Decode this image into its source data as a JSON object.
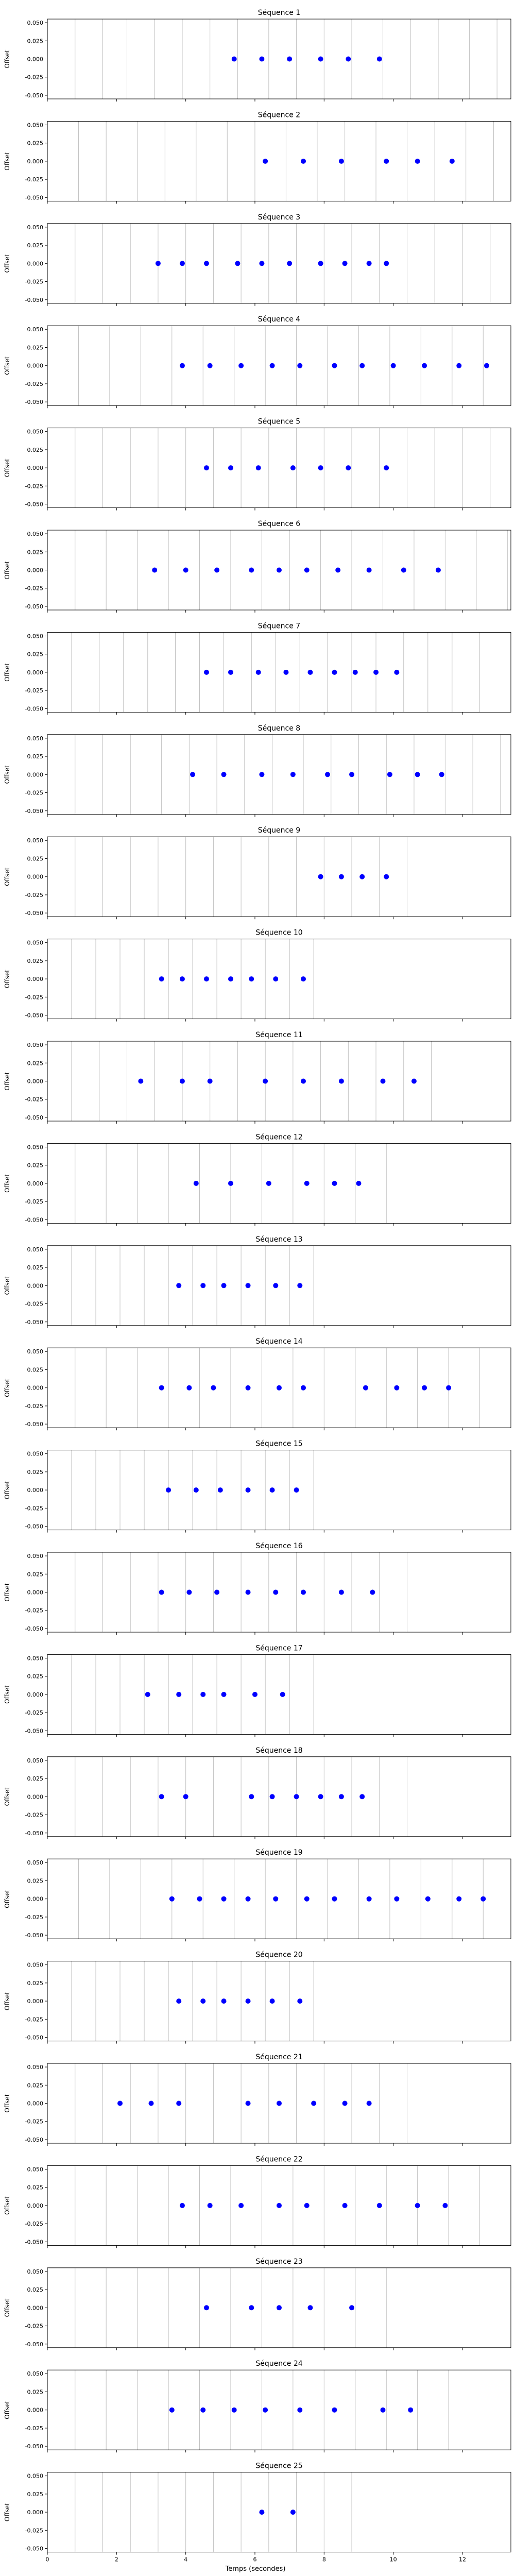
{
  "figure": {
    "xlabel": "Temps (secondes)",
    "ylabel": "Offset",
    "x_ticks": [
      "0",
      "2",
      "4",
      "6",
      "8",
      "10",
      "12"
    ],
    "y_ticks": [
      "0.050",
      "0.025",
      "0.000",
      "-0.025",
      "-0.050"
    ]
  },
  "chart_data": {
    "type": "scatter",
    "shared_x_axis": true,
    "xlim": [
      0,
      13.4
    ],
    "ylim": [
      -0.055,
      0.055
    ],
    "x_ticks": [
      0,
      2,
      4,
      6,
      8,
      10,
      12
    ],
    "y_ticks": [
      0.05,
      0.025,
      0.0,
      -0.025,
      -0.05
    ],
    "grid": "vertical lines only",
    "point_color": "#0000ff",
    "line_color": "#c0c0c0",
    "xlabel": "Temps (secondes)",
    "ylabel": "Offset",
    "panels": [
      {
        "title": "Séquence 1",
        "points": [
          5.4,
          6.2,
          7.0,
          7.9,
          8.7,
          9.6
        ],
        "lines": [
          0.8,
          1.6,
          2.3,
          3.1,
          3.9,
          4.7,
          5.5,
          6.4,
          7.2,
          8.0,
          8.8,
          9.7,
          10.5,
          11.3,
          12.2,
          13.0
        ]
      },
      {
        "title": "Séquence 2",
        "points": [
          6.3,
          7.4,
          8.5,
          9.8,
          10.7,
          11.7
        ],
        "lines": [
          0.9,
          1.7,
          2.6,
          3.4,
          4.3,
          5.2,
          6.0,
          6.9,
          7.8,
          8.6,
          9.5,
          10.4,
          11.2,
          12.1,
          12.9
        ]
      },
      {
        "title": "Séquence 3",
        "points": [
          3.2,
          3.9,
          4.6,
          5.5,
          6.2,
          7.0,
          7.9,
          8.6,
          9.3,
          9.8
        ],
        "lines": [
          0.8,
          1.6,
          2.4,
          3.2,
          4.0,
          4.8,
          5.6,
          6.4,
          7.2,
          8.0,
          8.8,
          9.6,
          10.4,
          11.2,
          12.0,
          12.8
        ]
      },
      {
        "title": "Séquence 4",
        "points": [
          3.9,
          4.7,
          5.6,
          6.5,
          7.3,
          8.3,
          9.1,
          10.0,
          10.9,
          11.9,
          12.7
        ],
        "lines": [
          0.9,
          1.8,
          2.7,
          3.6,
          4.5,
          5.4,
          6.3,
          7.2,
          8.1,
          9.0,
          9.9,
          10.8,
          11.7,
          12.6
        ]
      },
      {
        "title": "Séquence 5",
        "points": [
          4.6,
          5.3,
          6.1,
          7.1,
          7.9,
          8.7,
          9.8
        ],
        "lines": [
          0.8,
          1.6,
          2.4,
          3.2,
          4.0,
          4.8,
          5.6,
          6.4,
          7.2,
          8.0,
          8.8,
          9.6,
          10.4,
          11.2,
          12.0,
          12.8
        ]
      },
      {
        "title": "Séquence 6",
        "points": [
          3.1,
          4.0,
          4.9,
          5.9,
          6.7,
          7.5,
          8.4,
          9.3,
          10.3,
          11.3
        ],
        "lines": [
          0.8,
          1.7,
          2.6,
          3.5,
          4.4,
          5.3,
          6.2,
          7.0,
          7.9,
          8.8,
          9.7,
          10.6,
          11.5,
          12.4,
          13.3
        ]
      },
      {
        "title": "Séquence 7",
        "points": [
          4.6,
          5.3,
          6.1,
          6.9,
          7.6,
          8.3,
          8.9,
          9.5,
          10.1
        ],
        "lines": [
          0.7,
          1.5,
          2.2,
          2.9,
          3.7,
          4.4,
          5.1,
          5.9,
          6.6,
          7.3,
          8.1,
          8.8,
          9.5,
          10.3,
          11.0,
          11.7,
          12.5
        ]
      },
      {
        "title": "Séquence 8",
        "points": [
          4.2,
          5.1,
          6.2,
          7.1,
          8.1,
          8.8,
          9.9,
          10.7,
          11.4
        ],
        "lines": [
          0.8,
          1.6,
          2.4,
          3.3,
          4.1,
          4.9,
          5.7,
          6.5,
          7.4,
          8.2,
          9.0,
          9.8,
          10.6,
          11.5,
          12.3,
          13.1
        ]
      },
      {
        "title": "Séquence 9",
        "points": [
          7.9,
          8.5,
          9.1,
          9.8
        ],
        "lines": [
          0.8,
          1.6,
          2.4,
          3.2,
          4.0,
          4.8,
          5.6,
          6.4,
          7.2,
          8.0,
          8.8,
          9.6,
          10.4
        ]
      },
      {
        "title": "Séquence 10",
        "points": [
          3.3,
          3.9,
          4.6,
          5.3,
          5.9,
          6.6,
          7.4
        ],
        "lines": [
          0.7,
          1.4,
          2.1,
          2.8,
          3.5,
          4.2,
          4.9,
          5.6,
          6.3,
          7.0,
          7.7
        ]
      },
      {
        "title": "Séquence 11",
        "points": [
          2.7,
          3.9,
          4.7,
          6.3,
          7.4,
          8.5,
          9.7,
          10.6
        ],
        "lines": [
          0.7,
          1.5,
          2.3,
          3.1,
          3.9,
          4.7,
          5.5,
          6.3,
          7.1,
          7.9,
          8.7,
          9.5,
          10.3,
          11.1
        ]
      },
      {
        "title": "Séquence 12",
        "points": [
          4.3,
          5.3,
          6.4,
          7.5,
          8.3,
          9.0
        ],
        "lines": [
          0.8,
          1.7,
          2.6,
          3.5,
          4.4,
          5.3,
          6.2,
          7.1,
          8.0,
          8.9,
          9.8
        ]
      },
      {
        "title": "Séquence 13",
        "points": [
          3.8,
          4.5,
          5.1,
          5.8,
          6.6,
          7.3
        ],
        "lines": [
          0.7,
          1.4,
          2.1,
          2.8,
          3.5,
          4.2,
          4.9,
          5.6,
          6.3,
          7.0,
          7.7
        ]
      },
      {
        "title": "Séquence 14",
        "points": [
          3.3,
          4.1,
          4.8,
          5.8,
          6.7,
          7.4,
          9.2,
          10.1,
          10.9,
          11.6
        ],
        "lines": [
          0.8,
          1.7,
          2.6,
          3.5,
          4.4,
          5.3,
          6.2,
          7.1,
          8.0,
          8.9,
          9.8,
          10.7,
          11.6,
          12.5
        ]
      },
      {
        "title": "Séquence 15",
        "points": [
          3.5,
          4.3,
          5.0,
          5.8,
          6.5,
          7.2
        ],
        "lines": [
          0.7,
          1.4,
          2.1,
          2.8,
          3.5,
          4.2,
          4.9,
          5.6,
          6.3,
          7.0,
          7.7
        ]
      },
      {
        "title": "Séquence 16",
        "points": [
          3.3,
          4.1,
          4.9,
          5.8,
          6.6,
          7.4,
          8.5,
          9.4
        ],
        "lines": [
          0.8,
          1.6,
          2.4,
          3.2,
          4.0,
          4.8,
          5.6,
          6.4,
          7.2,
          8.0,
          8.8,
          9.6,
          10.4
        ]
      },
      {
        "title": "Séquence 17",
        "points": [
          2.9,
          3.8,
          4.5,
          5.1,
          6.0,
          6.8
        ],
        "lines": [
          0.7,
          1.4,
          2.1,
          2.8,
          3.5,
          4.2,
          4.9,
          5.6,
          6.3,
          7.0,
          7.7
        ]
      },
      {
        "title": "Séquence 18",
        "points": [
          3.3,
          4.0,
          5.9,
          6.5,
          7.2,
          7.9,
          8.5,
          9.1
        ],
        "lines": [
          0.8,
          1.6,
          2.4,
          3.2,
          4.0,
          4.8,
          5.6,
          6.4,
          7.2,
          8.0,
          8.8,
          9.6,
          10.4
        ]
      },
      {
        "title": "Séquence 19",
        "points": [
          3.6,
          4.4,
          5.1,
          5.8,
          6.6,
          7.5,
          8.3,
          9.3,
          10.1,
          11.0,
          11.9,
          12.6
        ],
        "lines": [
          0.9,
          1.8,
          2.7,
          3.6,
          4.5,
          5.4,
          6.3,
          7.2,
          8.1,
          9.0,
          9.9,
          10.8,
          11.7,
          12.6
        ]
      },
      {
        "title": "Séquence 20",
        "points": [
          3.8,
          4.5,
          5.1,
          5.8,
          6.5,
          7.3
        ],
        "lines": [
          0.7,
          1.4,
          2.1,
          2.8,
          3.5,
          4.2,
          4.9,
          5.6,
          6.3,
          7.0,
          7.7
        ]
      },
      {
        "title": "Séquence 21",
        "points": [
          2.1,
          3.0,
          3.8,
          5.8,
          6.7,
          7.7,
          8.6,
          9.3
        ],
        "lines": [
          0.8,
          1.6,
          2.4,
          3.2,
          4.0,
          4.8,
          5.6,
          6.4,
          7.2,
          8.0,
          8.8,
          9.6,
          10.4
        ]
      },
      {
        "title": "Séquence 22",
        "points": [
          3.9,
          4.7,
          5.6,
          6.7,
          7.5,
          8.6,
          9.6,
          10.7,
          11.5
        ],
        "lines": [
          0.8,
          1.7,
          2.6,
          3.5,
          4.4,
          5.3,
          6.2,
          7.1,
          8.0,
          8.9,
          9.8,
          10.7,
          11.6,
          12.5
        ]
      },
      {
        "title": "Séquence 23",
        "points": [
          4.6,
          5.9,
          6.7,
          7.6,
          8.8
        ],
        "lines": [
          0.8,
          1.7,
          2.6,
          3.5,
          4.4,
          5.3,
          6.2,
          7.1,
          8.0,
          8.9,
          9.8
        ]
      },
      {
        "title": "Séquence 24",
        "points": [
          3.6,
          4.5,
          5.4,
          6.3,
          7.3,
          8.3,
          9.7,
          10.5
        ],
        "lines": [
          0.8,
          1.7,
          2.6,
          3.5,
          4.4,
          5.3,
          6.2,
          7.1,
          8.0,
          8.9,
          9.8,
          10.7,
          11.6
        ]
      },
      {
        "title": "Séquence 25",
        "points": [
          6.2,
          7.1
        ],
        "lines": [
          0.8,
          1.6,
          2.4,
          3.2,
          4.0,
          4.8,
          5.6,
          6.4,
          7.2,
          8.0,
          8.8
        ]
      }
    ]
  }
}
